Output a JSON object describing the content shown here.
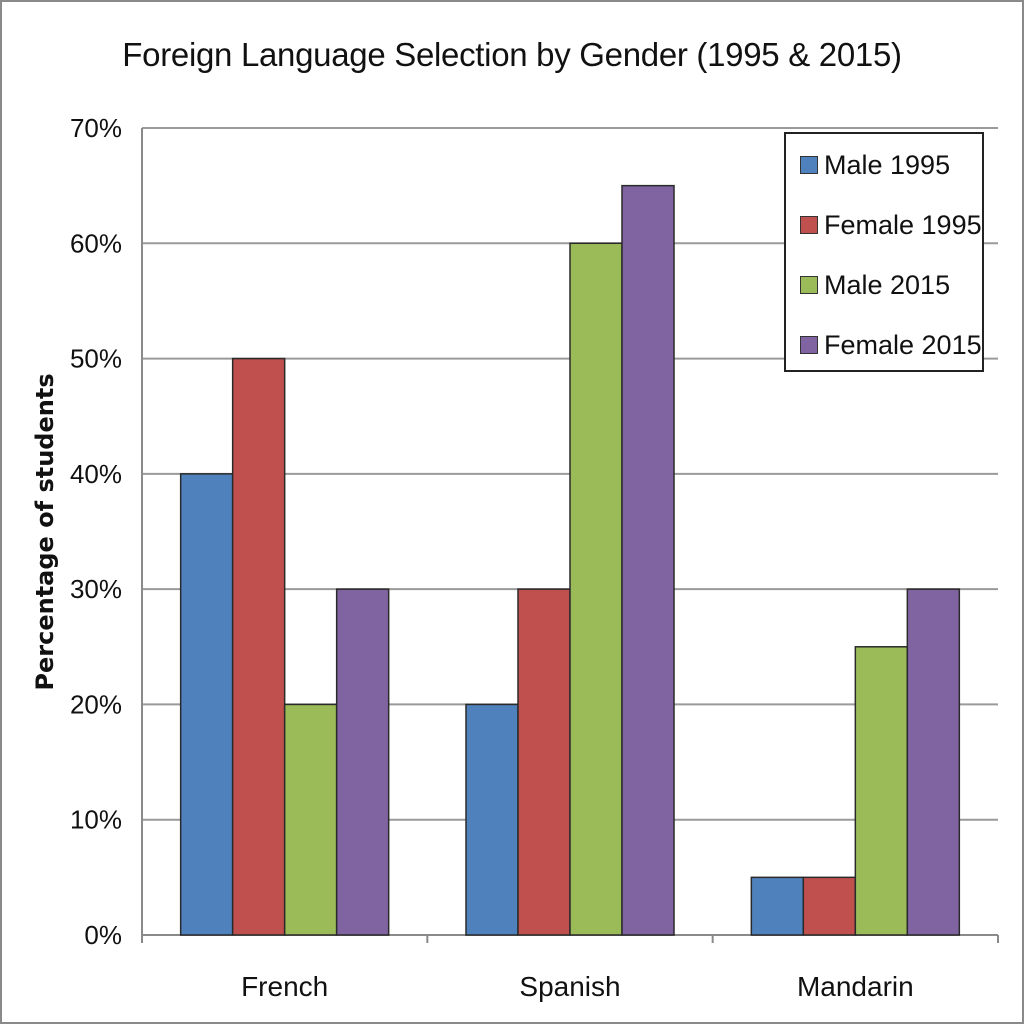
{
  "chart_data": {
    "type": "bar",
    "title": "Foreign Language Selection by Gender (1995 & 2015)",
    "xlabel": "",
    "ylabel": "Percentage of students",
    "categories": [
      "French",
      "Spanish",
      "Mandarin"
    ],
    "ylim": [
      0,
      70
    ],
    "yticks": [
      "0%",
      "10%",
      "20%",
      "30%",
      "40%",
      "50%",
      "60%",
      "70%"
    ],
    "grid": true,
    "legend_position": "top-right",
    "series": [
      {
        "name": "Male 1995",
        "color": "#4f81bd",
        "values": [
          40,
          20,
          5
        ]
      },
      {
        "name": "Female 1995",
        "color": "#c0504d",
        "values": [
          50,
          30,
          5
        ]
      },
      {
        "name": "Male 2015",
        "color": "#9bbb59",
        "values": [
          20,
          60,
          25
        ]
      },
      {
        "name": "Female 2015",
        "color": "#8064a2",
        "values": [
          30,
          65,
          30
        ]
      }
    ]
  }
}
